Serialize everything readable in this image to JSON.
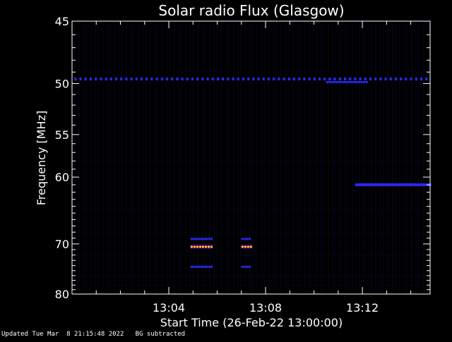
{
  "chart_data": {
    "type": "heatmap",
    "title": "Solar radio Flux (Glasgow)",
    "xlabel": "Start Time (26-Feb-22 13:00:00)",
    "ylabel": "Frequency [MHz]",
    "x_unit": "minutes after 13:00:00",
    "xlim": [
      0,
      14.8
    ],
    "ylim": [
      80,
      45
    ],
    "y_scale": "reciprocal (plasma frequency axis)",
    "x_ticks": [
      {
        "value": 4,
        "label": "13:04"
      },
      {
        "value": 8,
        "label": "13:08"
      },
      {
        "value": 12,
        "label": "13:12"
      }
    ],
    "y_ticks": [
      {
        "value": 45,
        "label": "45"
      },
      {
        "value": 50,
        "label": "50"
      },
      {
        "value": 55,
        "label": "55"
      },
      {
        "value": 60,
        "label": "60"
      },
      {
        "value": 70,
        "label": "70"
      },
      {
        "value": 80,
        "label": "80"
      }
    ],
    "features": [
      {
        "name": "interference line",
        "freq_mhz": 49.6,
        "t_start": 0.1,
        "t_end": 14.8,
        "intensity": "medium"
      },
      {
        "name": "burst lower",
        "freq_mhz": 70.5,
        "t_start": 4.9,
        "t_end": 5.8,
        "intensity": "high"
      },
      {
        "name": "burst lower",
        "freq_mhz": 70.5,
        "t_start": 7.0,
        "t_end": 7.4,
        "intensity": "high"
      },
      {
        "name": "burst sideband",
        "freq_mhz": 69.2,
        "t_start": 4.9,
        "t_end": 5.8,
        "intensity": "medium"
      },
      {
        "name": "burst sideband",
        "freq_mhz": 69.2,
        "t_start": 7.0,
        "t_end": 7.4,
        "intensity": "medium"
      },
      {
        "name": "burst sideband",
        "freq_mhz": 74.3,
        "t_start": 4.9,
        "t_end": 5.8,
        "intensity": "low"
      },
      {
        "name": "burst sideband",
        "freq_mhz": 74.3,
        "t_start": 7.0,
        "t_end": 7.4,
        "intensity": "low"
      },
      {
        "name": "band 61 MHz",
        "freq_mhz": 61.0,
        "t_start": 11.7,
        "t_end": 14.8,
        "intensity": "medium"
      },
      {
        "name": "line 50 MHz",
        "freq_mhz": 49.9,
        "t_start": 10.5,
        "t_end": 12.2,
        "intensity": "medium"
      }
    ],
    "grid": false,
    "colors": {
      "background": "#000000",
      "low": "#0a0a8a",
      "medium": "#2a2aff",
      "high": "#ffdd44",
      "hot": "#ff2020"
    }
  },
  "footer": {
    "updated": "Updated Tue Mar  8 21:15:48 2022",
    "note": "BG subtracted"
  }
}
